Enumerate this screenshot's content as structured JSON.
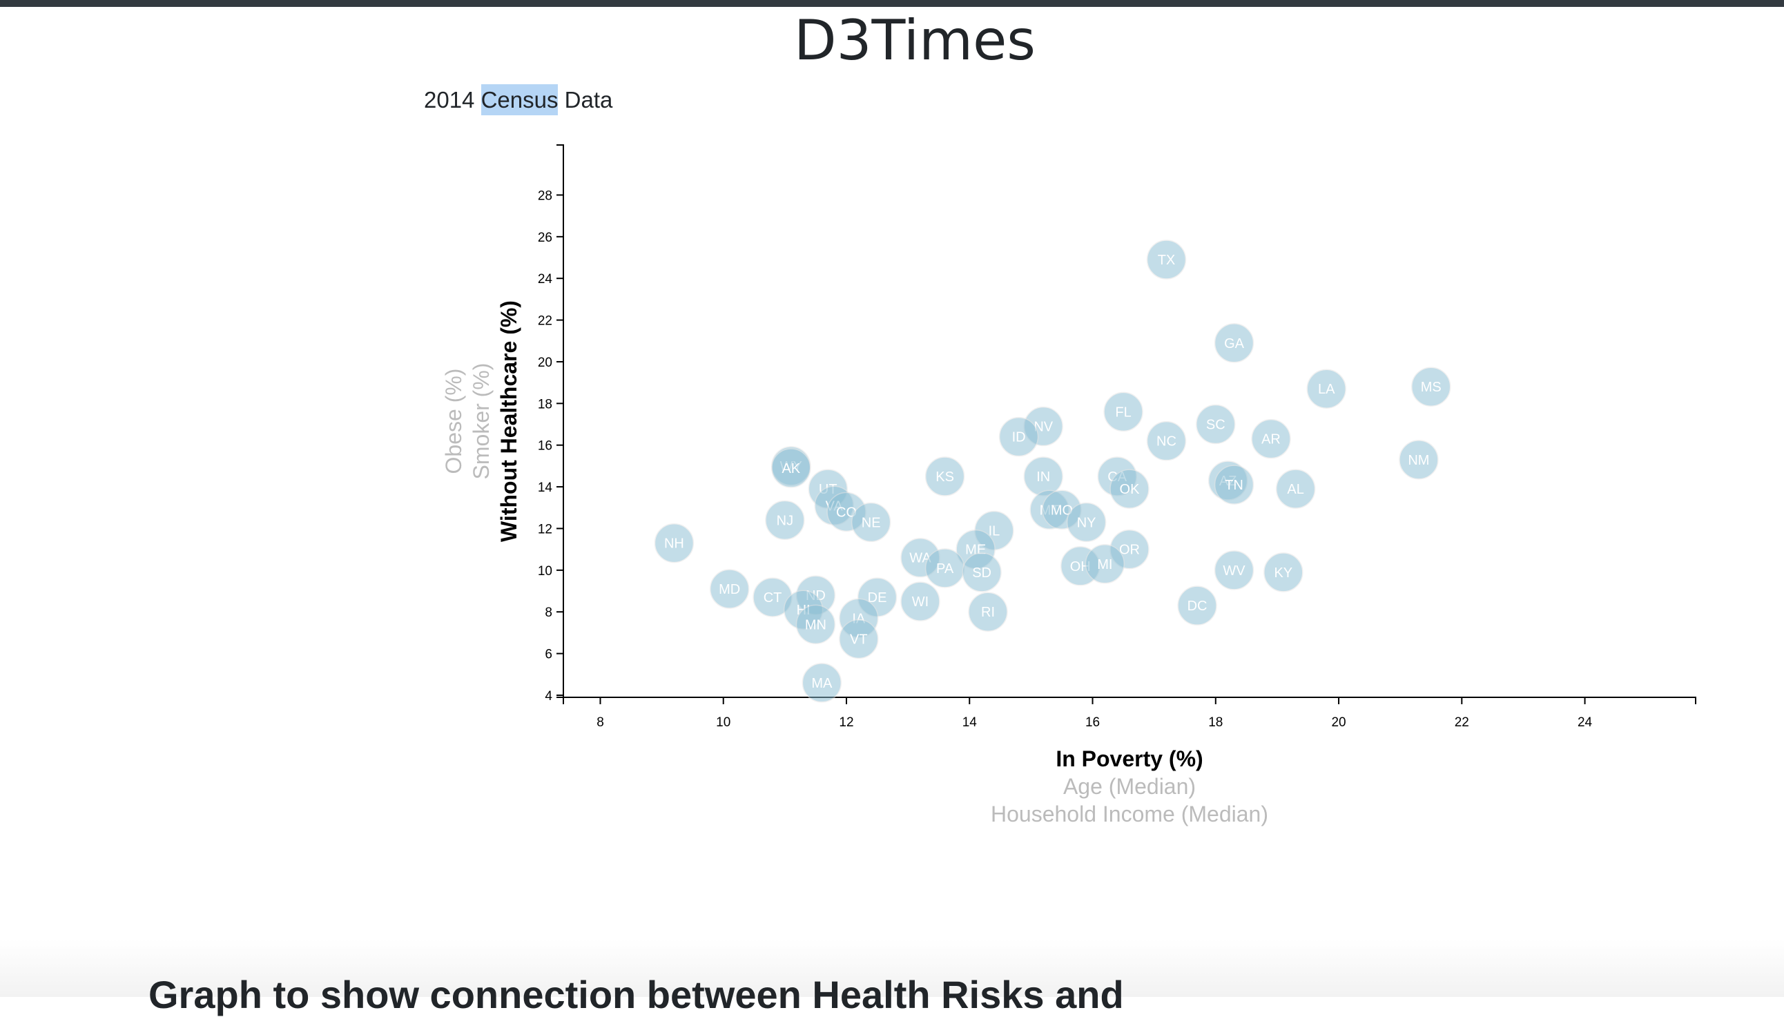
{
  "header": {
    "title": "D3Times"
  },
  "subtitle": {
    "before": "2014 ",
    "highlight": "Census",
    "after": " Data"
  },
  "footer": {
    "heading": "Graph to show connection between Health Risks and"
  },
  "colors": {
    "circle": "#89bdd3",
    "circle_text": "#ffffff",
    "active_label": "#000000",
    "inactive_label": "#bbbbbb",
    "highlight": "#b5d5f5"
  },
  "chart_data": {
    "type": "scatter",
    "xlim": [
      7.4,
      25.8
    ],
    "ylim": [
      3.9,
      30.4
    ],
    "x_ticks": [
      8,
      10,
      12,
      14,
      16,
      18,
      20,
      22,
      24
    ],
    "y_ticks": [
      4,
      6,
      8,
      10,
      12,
      14,
      16,
      18,
      20,
      22,
      24,
      26,
      28
    ],
    "x_labels": [
      {
        "text": "In Poverty (%)",
        "active": true
      },
      {
        "text": "Age (Median)",
        "active": false
      },
      {
        "text": "Household Income (Median)",
        "active": false
      }
    ],
    "y_labels": [
      {
        "text": "Without Healthcare (%)",
        "active": true
      },
      {
        "text": "Smoker (%)",
        "active": false
      },
      {
        "text": "Obese (%)",
        "active": false
      }
    ],
    "points": [
      {
        "abbr": "TX",
        "x": 17.2,
        "y": 24.9
      },
      {
        "abbr": "GA",
        "x": 18.3,
        "y": 20.9
      },
      {
        "abbr": "LA",
        "x": 19.8,
        "y": 18.7
      },
      {
        "abbr": "MS",
        "x": 21.5,
        "y": 18.8
      },
      {
        "abbr": "NV",
        "x": 15.2,
        "y": 16.9
      },
      {
        "abbr": "FL",
        "x": 16.5,
        "y": 17.6
      },
      {
        "abbr": "SC",
        "x": 18.0,
        "y": 17.0
      },
      {
        "abbr": "ID",
        "x": 14.8,
        "y": 16.4
      },
      {
        "abbr": "NC",
        "x": 17.2,
        "y": 16.2
      },
      {
        "abbr": "AR",
        "x": 18.9,
        "y": 16.3
      },
      {
        "abbr": "NM",
        "x": 21.3,
        "y": 15.3
      },
      {
        "abbr": "WY",
        "x": 11.1,
        "y": 15.0
      },
      {
        "abbr": "AK",
        "x": 11.1,
        "y": 14.9
      },
      {
        "abbr": "KS",
        "x": 13.6,
        "y": 14.5
      },
      {
        "abbr": "IN",
        "x": 15.2,
        "y": 14.5
      },
      {
        "abbr": "CA",
        "x": 16.4,
        "y": 14.5
      },
      {
        "abbr": "AZ",
        "x": 18.2,
        "y": 14.3
      },
      {
        "abbr": "TN",
        "x": 18.3,
        "y": 14.1
      },
      {
        "abbr": "OK",
        "x": 16.6,
        "y": 13.9
      },
      {
        "abbr": "AL",
        "x": 19.3,
        "y": 13.9
      },
      {
        "abbr": "UT",
        "x": 11.7,
        "y": 13.9
      },
      {
        "abbr": "VA",
        "x": 11.8,
        "y": 13.1
      },
      {
        "abbr": "CO",
        "x": 12.0,
        "y": 12.8
      },
      {
        "abbr": "NJ",
        "x": 11.0,
        "y": 12.4
      },
      {
        "abbr": "NE",
        "x": 12.4,
        "y": 12.3
      },
      {
        "abbr": "MT",
        "x": 15.3,
        "y": 12.9
      },
      {
        "abbr": "MO",
        "x": 15.5,
        "y": 12.9
      },
      {
        "abbr": "NY",
        "x": 15.9,
        "y": 12.3
      },
      {
        "abbr": "IL",
        "x": 14.4,
        "y": 11.9
      },
      {
        "abbr": "NH",
        "x": 9.2,
        "y": 11.3
      },
      {
        "abbr": "ME",
        "x": 14.1,
        "y": 11.0
      },
      {
        "abbr": "OR",
        "x": 16.6,
        "y": 11.0
      },
      {
        "abbr": "WA",
        "x": 13.2,
        "y": 10.6
      },
      {
        "abbr": "PA",
        "x": 13.6,
        "y": 10.1
      },
      {
        "abbr": "SD",
        "x": 14.2,
        "y": 9.9
      },
      {
        "abbr": "OH",
        "x": 15.8,
        "y": 10.2
      },
      {
        "abbr": "MI",
        "x": 16.2,
        "y": 10.3
      },
      {
        "abbr": "WV",
        "x": 18.3,
        "y": 10.0
      },
      {
        "abbr": "KY",
        "x": 19.1,
        "y": 9.9
      },
      {
        "abbr": "MD",
        "x": 10.1,
        "y": 9.1
      },
      {
        "abbr": "CT",
        "x": 10.8,
        "y": 8.7
      },
      {
        "abbr": "ND",
        "x": 11.5,
        "y": 8.8
      },
      {
        "abbr": "DE",
        "x": 12.5,
        "y": 8.7
      },
      {
        "abbr": "WI",
        "x": 13.2,
        "y": 8.5
      },
      {
        "abbr": "HI",
        "x": 11.3,
        "y": 8.1
      },
      {
        "abbr": "RI",
        "x": 14.3,
        "y": 8.0
      },
      {
        "abbr": "DC",
        "x": 17.7,
        "y": 8.3
      },
      {
        "abbr": "IA",
        "x": 12.2,
        "y": 7.7
      },
      {
        "abbr": "MN",
        "x": 11.5,
        "y": 7.4
      },
      {
        "abbr": "VT",
        "x": 12.2,
        "y": 6.7
      },
      {
        "abbr": "MA",
        "x": 11.6,
        "y": 4.6
      }
    ]
  }
}
